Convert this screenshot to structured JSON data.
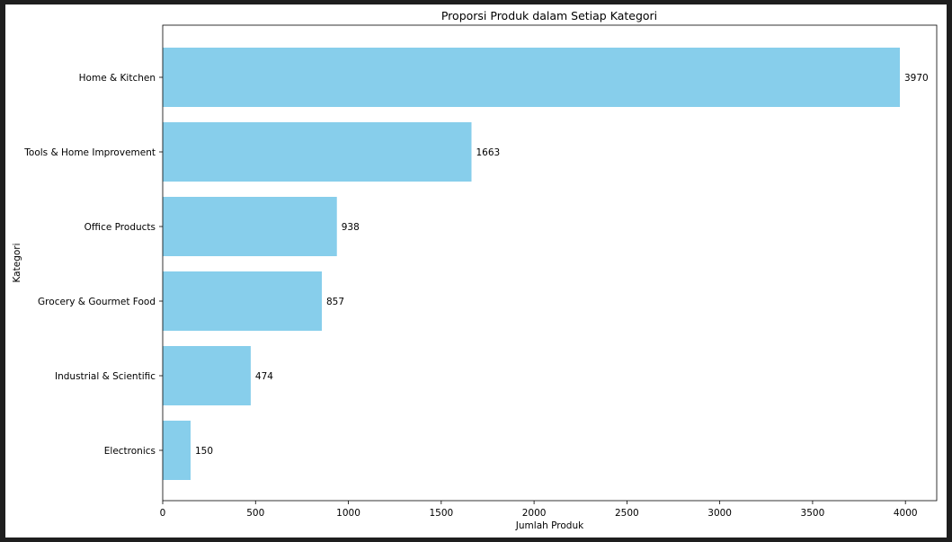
{
  "chart_data": {
    "type": "bar",
    "orientation": "horizontal",
    "title": "Proporsi Produk dalam Setiap Kategori",
    "xlabel": "Jumlah Produk",
    "ylabel": "Kategori",
    "categories": [
      "Home & Kitchen",
      "Tools & Home Improvement",
      "Office Products",
      "Grocery & Gourmet Food",
      "Industrial & Scientific",
      "Electronics"
    ],
    "values": [
      3970,
      1663,
      938,
      857,
      474,
      150
    ],
    "data_labels": [
      "3970",
      "1663",
      "938",
      "857",
      "474",
      "150"
    ],
    "xticks": [
      0,
      500,
      1000,
      1500,
      2000,
      2500,
      3000,
      3500,
      4000
    ],
    "xlim": [
      0,
      4168.5
    ],
    "bar_color": "#87ceeb",
    "grid": false,
    "legend": "none"
  }
}
